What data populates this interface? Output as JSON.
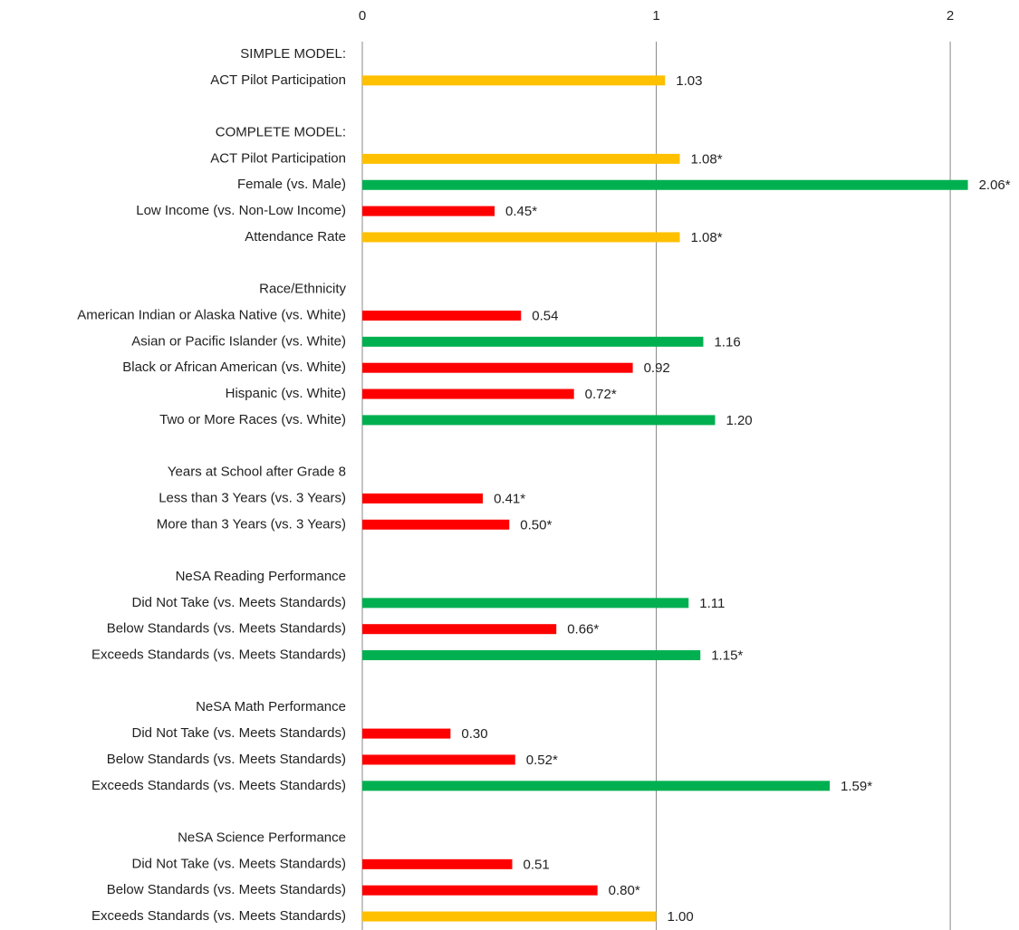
{
  "chart_data": {
    "type": "bar",
    "orientation": "horizontal",
    "categories": [
      "SIMPLE MODEL:",
      "ACT Pilot Participation",
      null,
      "COMPLETE MODEL:",
      "ACT Pilot Participation",
      "Female (vs. Male)",
      "Low Income (vs. Non-Low Income)",
      "Attendance Rate",
      null,
      "Race/Ethnicity",
      "American Indian or Alaska Native (vs. White)",
      "Asian or Pacific Islander (vs. White)",
      "Black or African American (vs. White)",
      "Hispanic (vs. White)",
      "Two or More Races (vs. White)",
      null,
      "Years at School after Grade 8",
      "Less than 3 Years (vs. 3 Years)",
      "More than 3 Years (vs. 3 Years)",
      null,
      "NeSA Reading Performance",
      "Did Not Take (vs. Meets Standards)",
      "Below Standards (vs. Meets Standards)",
      "Exceeds Standards (vs. Meets Standards)",
      null,
      "NeSA Math Performance",
      "Did Not Take (vs. Meets Standards)",
      "Below Standards (vs. Meets Standards)",
      "Exceeds Standards (vs. Meets Standards)",
      null,
      "NeSA Science Performance",
      "Did Not Take (vs. Meets Standards)",
      "Below Standards (vs. Meets Standards)",
      "Exceeds Standards (vs. Meets Standards)"
    ],
    "values": [
      null,
      1.03,
      null,
      null,
      1.08,
      2.06,
      0.45,
      1.08,
      null,
      null,
      0.54,
      1.16,
      0.92,
      0.72,
      1.2,
      null,
      null,
      0.41,
      0.5,
      null,
      null,
      1.11,
      0.66,
      1.15,
      null,
      null,
      0.3,
      0.52,
      1.59,
      null,
      null,
      0.51,
      0.8,
      1.0
    ],
    "value_labels": [
      null,
      "1.03",
      null,
      null,
      "1.08*",
      "2.06*",
      "0.45*",
      "1.08*",
      null,
      null,
      "0.54",
      "1.16",
      "0.92",
      "0.72*",
      "1.20",
      null,
      null,
      "0.41*",
      "0.50*",
      null,
      null,
      "1.11",
      "0.66*",
      "1.15*",
      null,
      null,
      "0.30",
      "0.52*",
      "1.59*",
      null,
      null,
      "0.51",
      "0.80*",
      "1.00"
    ],
    "colors": [
      null,
      "#FFC000",
      null,
      null,
      "#FFC000",
      "#00B050",
      "#FF0000",
      "#FFC000",
      null,
      null,
      "#FF0000",
      "#00B050",
      "#FF0000",
      "#FF0000",
      "#00B050",
      null,
      null,
      "#FF0000",
      "#FF0000",
      null,
      null,
      "#00B050",
      "#FF0000",
      "#00B050",
      null,
      null,
      "#FF0000",
      "#FF0000",
      "#00B050",
      null,
      null,
      "#FF0000",
      "#FF0000",
      "#FFC000"
    ],
    "xlim": [
      0,
      2.2
    ],
    "xticks": [
      0,
      1,
      2
    ],
    "grid": true
  }
}
